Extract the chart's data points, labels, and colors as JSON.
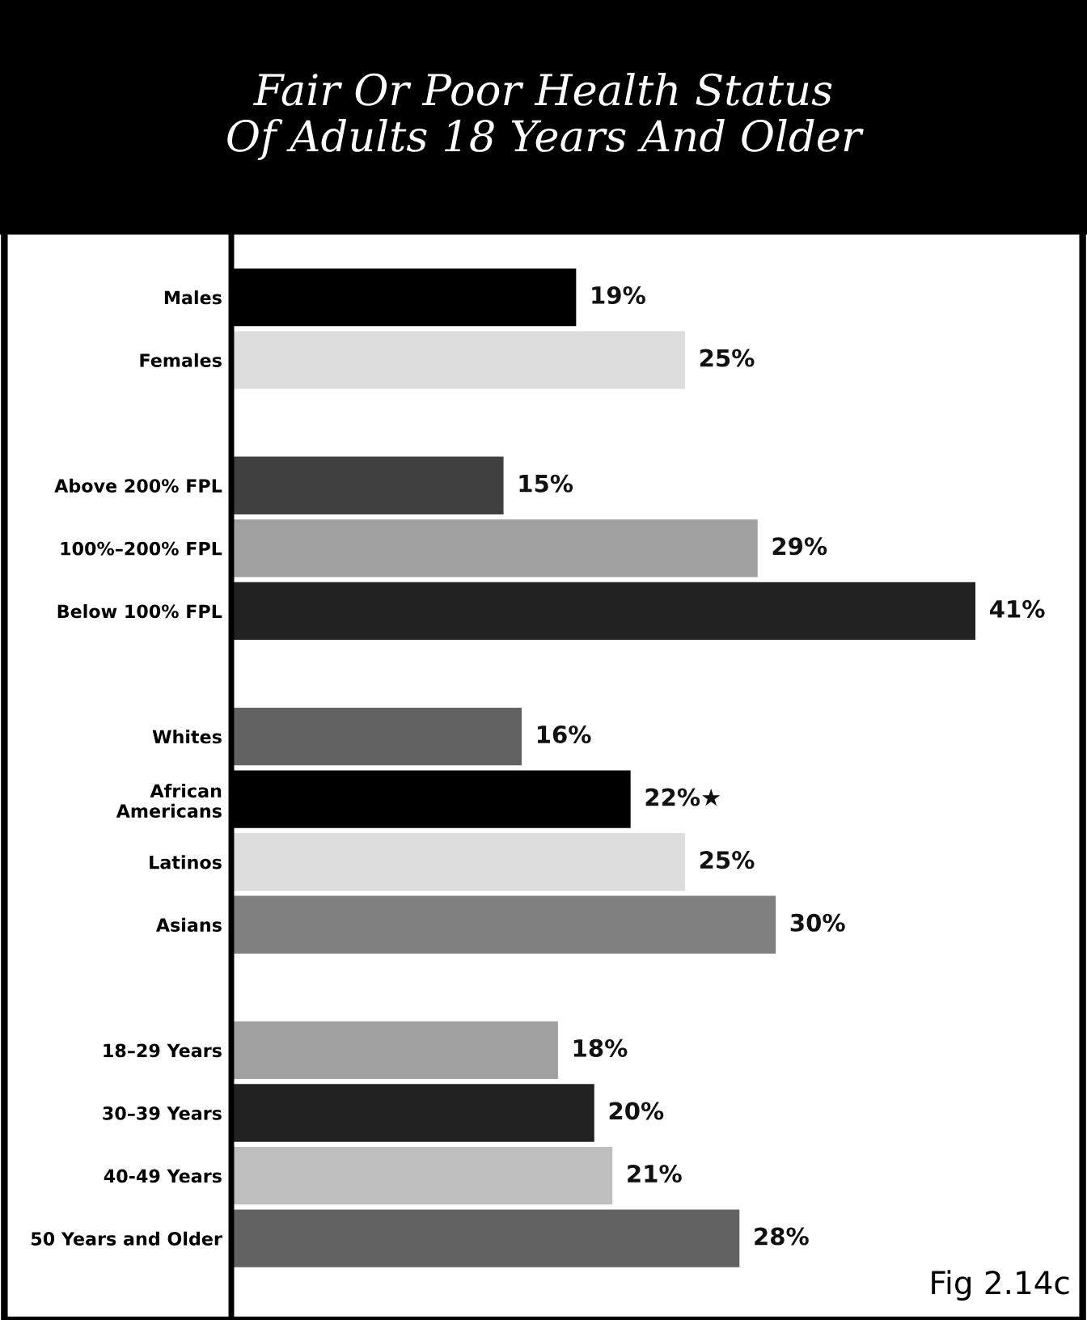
{
  "chart_data": {
    "type": "bar",
    "orientation": "horizontal",
    "title": "Fair Or Poor Health Status\nOf Adults 18 Years And Older",
    "categories": [
      "Males",
      "Females",
      null,
      "Above 200% FPL",
      "100%–200% FPL",
      "Below 100% FPL",
      null,
      "Whites",
      "African\nAmericans",
      "Latinos",
      "Asians",
      null,
      "18–29 Years",
      "30–39 Years",
      "40-49 Years",
      "50 Years and Older"
    ],
    "values": [
      19,
      25,
      null,
      15,
      29,
      41,
      null,
      16,
      22,
      25,
      30,
      null,
      18,
      20,
      21,
      28
    ],
    "colors": [
      "#000000",
      "#dddddd",
      null,
      "#404040",
      "#a0a0a0",
      "#222222",
      null,
      "#626262",
      "#000000",
      "#dddddd",
      "#808080",
      null,
      "#a0a0a0",
      "#222222",
      "#bebebe",
      "#626262"
    ],
    "value_labels": [
      "19%",
      "25%",
      null,
      "15%",
      "29%",
      "41%",
      null,
      "16%",
      "22%★",
      "25%",
      "30%",
      null,
      "18%",
      "20%",
      "21%",
      "28%"
    ],
    "annotations": [
      "Fig 2.14c"
    ],
    "grid": false,
    "legend": false
  }
}
